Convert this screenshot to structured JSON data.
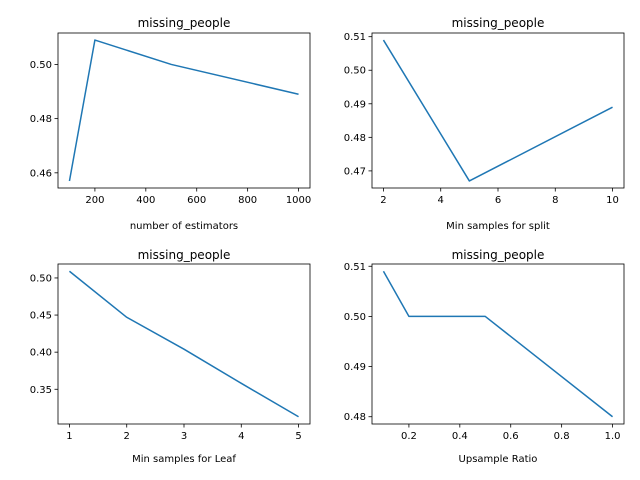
{
  "chart_data": [
    {
      "type": "line",
      "title": "missing_people",
      "xlabel": "number of estimators",
      "ylabel": "",
      "x": [
        100,
        200,
        500,
        1000
      ],
      "series": [
        {
          "values": [
            0.457,
            0.509,
            0.5,
            0.489
          ],
          "color": "#1f77b4"
        }
      ],
      "xlim": [
        55,
        1045
      ],
      "ylim": [
        0.4544,
        0.5116
      ],
      "xticks": [
        200,
        400,
        600,
        800,
        1000
      ],
      "xtick_labels": [
        "200",
        "400",
        "600",
        "800",
        "1000"
      ],
      "yticks": [
        0.46,
        0.48,
        0.5
      ],
      "ytick_labels": [
        "0.46",
        "0.48",
        "0.50"
      ],
      "grid": false
    },
    {
      "type": "line",
      "title": "missing_people",
      "xlabel": "Min samples for split",
      "ylabel": "",
      "x": [
        2,
        5,
        10
      ],
      "series": [
        {
          "values": [
            0.509,
            0.467,
            0.489
          ],
          "color": "#1f77b4"
        }
      ],
      "xlim": [
        1.6,
        10.4
      ],
      "ylim": [
        0.4649,
        0.5111
      ],
      "xticks": [
        2,
        4,
        6,
        8,
        10
      ],
      "xtick_labels": [
        "2",
        "4",
        "6",
        "8",
        "10"
      ],
      "yticks": [
        0.47,
        0.48,
        0.49,
        0.5,
        0.51
      ],
      "ytick_labels": [
        "0.47",
        "0.48",
        "0.49",
        "0.50",
        "0.51"
      ],
      "grid": false
    },
    {
      "type": "line",
      "title": "missing_people",
      "xlabel": "Min samples for Leaf",
      "ylabel": "",
      "x": [
        1,
        2,
        3,
        4,
        5
      ],
      "series": [
        {
          "values": [
            0.509,
            0.447,
            0.404,
            0.358,
            0.313
          ],
          "color": "#1f77b4"
        }
      ],
      "xlim": [
        0.8,
        5.2
      ],
      "ylim": [
        0.3032,
        0.5188
      ],
      "xticks": [
        1,
        2,
        3,
        4,
        5
      ],
      "xtick_labels": [
        "1",
        "2",
        "3",
        "4",
        "5"
      ],
      "yticks": [
        0.35,
        0.4,
        0.45,
        0.5
      ],
      "ytick_labels": [
        "0.35",
        "0.40",
        "0.45",
        "0.50"
      ],
      "grid": false
    },
    {
      "type": "line",
      "title": "missing_people",
      "xlabel": "Upsample Ratio",
      "ylabel": "",
      "x": [
        0.1,
        0.2,
        0.5,
        1.0
      ],
      "series": [
        {
          "values": [
            0.509,
            0.5,
            0.5,
            0.48
          ],
          "color": "#1f77b4"
        }
      ],
      "xlim": [
        0.055,
        1.045
      ],
      "ylim": [
        0.47855,
        0.51045
      ],
      "xticks": [
        0.2,
        0.4,
        0.6,
        0.8,
        1.0
      ],
      "xtick_labels": [
        "0.2",
        "0.4",
        "0.6",
        "0.8",
        "1.0"
      ],
      "yticks": [
        0.48,
        0.49,
        0.5,
        0.51
      ],
      "ytick_labels": [
        "0.48",
        "0.49",
        "0.50",
        "0.51"
      ],
      "grid": false
    }
  ]
}
